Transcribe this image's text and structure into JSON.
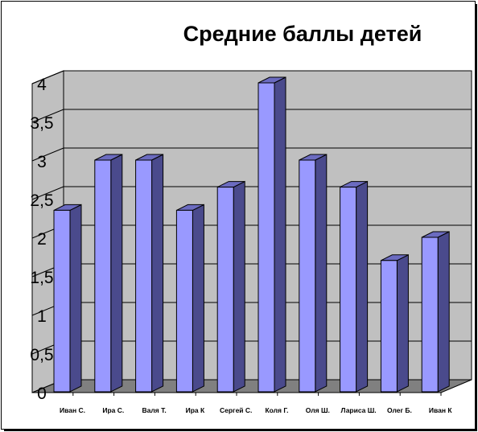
{
  "chart_data": {
    "type": "bar",
    "title": "Средние баллы детей",
    "categories": [
      "Иван С.",
      "Ира С.",
      "Валя Т.",
      "Ира К",
      "Сергей С.",
      "Коля Г.",
      "Оля Ш.",
      "Лариса Ш.",
      "Олег Б.",
      "Иван К"
    ],
    "values": [
      2.35,
      3.0,
      3.0,
      2.35,
      2.65,
      4.0,
      3.0,
      2.65,
      1.7,
      2.0
    ],
    "ylim": [
      0,
      4
    ],
    "yticks": [
      "0",
      "0,5",
      "1",
      "1,5",
      "2",
      "2,5",
      "3",
      "3,5",
      "4"
    ],
    "ytick_values": [
      0,
      0.5,
      1,
      1.5,
      2,
      2.5,
      3,
      3.5,
      4
    ],
    "grid": true,
    "colors": {
      "bar_front": "#9999ff",
      "bar_side": "#4a4a8c",
      "bar_top": "#6b6bc0",
      "wall": "#c0c0c0",
      "floor": "#808080",
      "grid": "#000000"
    }
  }
}
